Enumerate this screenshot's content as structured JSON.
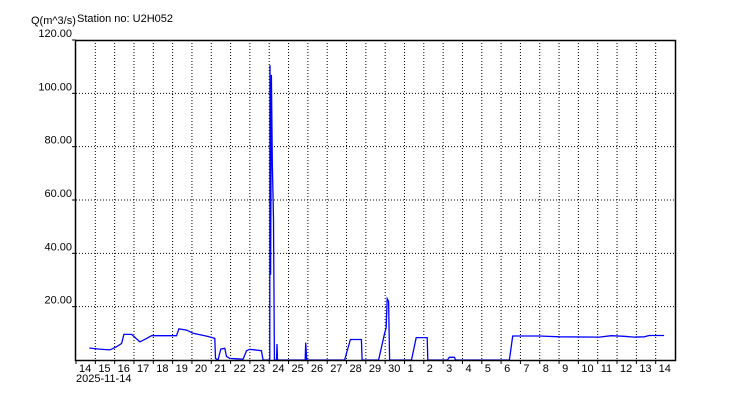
{
  "header": {
    "unit_label": "Q(m^3/s)",
    "station_label": "Station no: U2H052"
  },
  "chart_data": {
    "type": "line",
    "title": "Station no: U2H052",
    "ylabel": "Q(m^3/s)",
    "xlabel": "",
    "date_label": "2025-11-14",
    "xlim": [
      "2025-11-14T00:00",
      "2025-12-15T00:00"
    ],
    "ylim": [
      0,
      120
    ],
    "y_ticks": [
      20,
      40,
      60,
      80,
      100,
      120
    ],
    "y_tick_labels": [
      "20.00",
      "40.00",
      "60.00",
      "80.00",
      "100.00",
      "120.00"
    ],
    "x_tick_labels": [
      "14",
      "15",
      "16",
      "17",
      "18",
      "19",
      "20",
      "21",
      "22",
      "23",
      "24",
      "25",
      "26",
      "27",
      "28",
      "29",
      "30",
      "1",
      "2",
      "3",
      "4",
      "5",
      "6",
      "7",
      "8",
      "9",
      "10",
      "11",
      "12",
      "13",
      "14"
    ],
    "grid": true,
    "grid_style": "dotted",
    "line_color": "#0000ff",
    "series": [
      {
        "points": [
          [
            "2025-11-14T16:30",
            4.5
          ],
          [
            "2025-11-15T04:50",
            4.1
          ],
          [
            "2025-11-15T18:10",
            3.8
          ],
          [
            "2025-11-16T02:25",
            5.0
          ],
          [
            "2025-11-16T08:40",
            6.2
          ],
          [
            "2025-11-16T11:30",
            9.6
          ],
          [
            "2025-11-16T21:05",
            9.6
          ],
          [
            "2025-11-17T07:25",
            6.8
          ],
          [
            "2025-11-17T15:40",
            8.1
          ],
          [
            "2025-11-17T21:55",
            9.1
          ],
          [
            "2025-11-19T04:50",
            9.1
          ],
          [
            "2025-11-19T07:45",
            11.7
          ],
          [
            "2025-11-19T17:20",
            11.2
          ],
          [
            "2025-11-20T01:25",
            10.0
          ],
          [
            "2025-11-20T20:10",
            8.8
          ],
          [
            "2025-11-21T04:25",
            8.1
          ],
          [
            "2025-11-21T05:15",
            0.6
          ],
          [
            "2025-11-21T08:25",
            0
          ],
          [
            "2025-11-21T11:50",
            4.1
          ],
          [
            "2025-11-21T16:50",
            4.4
          ],
          [
            "2025-11-21T18:55",
            1.3
          ],
          [
            "2025-11-21T23:00",
            0.6
          ],
          [
            "2025-11-22T15:35",
            0.3
          ],
          [
            "2025-11-22T19:45",
            3.5
          ],
          [
            "2025-11-22T23:50",
            4.0
          ],
          [
            "2025-11-23T14:20",
            3.5
          ],
          [
            "2025-11-23T16:20",
            0
          ],
          [
            "2025-11-24T00:40",
            0
          ],
          [
            "2025-11-24T01:00",
            110.6
          ],
          [
            "2025-11-24T01:40",
            32
          ],
          [
            "2025-11-24T02:40",
            106.9
          ],
          [
            "2025-11-24T03:50",
            74.4
          ],
          [
            "2025-11-24T05:15",
            53
          ],
          [
            "2025-11-24T06:25",
            0
          ],
          [
            "2025-11-24T09:05",
            0
          ],
          [
            "2025-11-24T09:40",
            6
          ],
          [
            "2025-11-24T10:15",
            0
          ],
          [
            "2025-11-25T20:40",
            0
          ],
          [
            "2025-11-25T21:20",
            6.5
          ],
          [
            "2025-11-25T22:30",
            0
          ],
          [
            "2025-11-27T21:40",
            0
          ],
          [
            "2025-11-28T04:50",
            7.7
          ],
          [
            "2025-11-28T18:30",
            7.7
          ],
          [
            "2025-11-28T19:25",
            0
          ],
          [
            "2025-11-29T15:50",
            0
          ],
          [
            "2025-11-29T23:20",
            10
          ],
          [
            "2025-11-30T01:10",
            12
          ],
          [
            "2025-11-30T02:35",
            23
          ],
          [
            "2025-11-30T04:15",
            22
          ],
          [
            "2025-11-30T05:30",
            0
          ],
          [
            "2025-12-01T08:40",
            0
          ],
          [
            "2025-12-01T14:35",
            8.4
          ],
          [
            "2025-12-02T04:15",
            8.4
          ],
          [
            "2025-12-02T05:00",
            0
          ],
          [
            "2025-12-03T05:20",
            0
          ],
          [
            "2025-12-03T07:50",
            1
          ],
          [
            "2025-12-03T14:05",
            1
          ],
          [
            "2025-12-03T15:20",
            0
          ],
          [
            "2025-12-06T10:20",
            0
          ],
          [
            "2025-12-06T14:25",
            9.0
          ],
          [
            "2025-12-07T23:30",
            9.0
          ],
          [
            "2025-12-09T00:15",
            8.7
          ],
          [
            "2025-12-11T01:55",
            8.6
          ],
          [
            "2025-12-11T16:50",
            9.1
          ],
          [
            "2025-12-12T08:55",
            8.9
          ],
          [
            "2025-12-12T21:20",
            8.6
          ],
          [
            "2025-12-13T09:50",
            8.7
          ],
          [
            "2025-12-13T15:50",
            9.2
          ],
          [
            "2025-12-14T10:30",
            9.2
          ]
        ]
      }
    ]
  }
}
